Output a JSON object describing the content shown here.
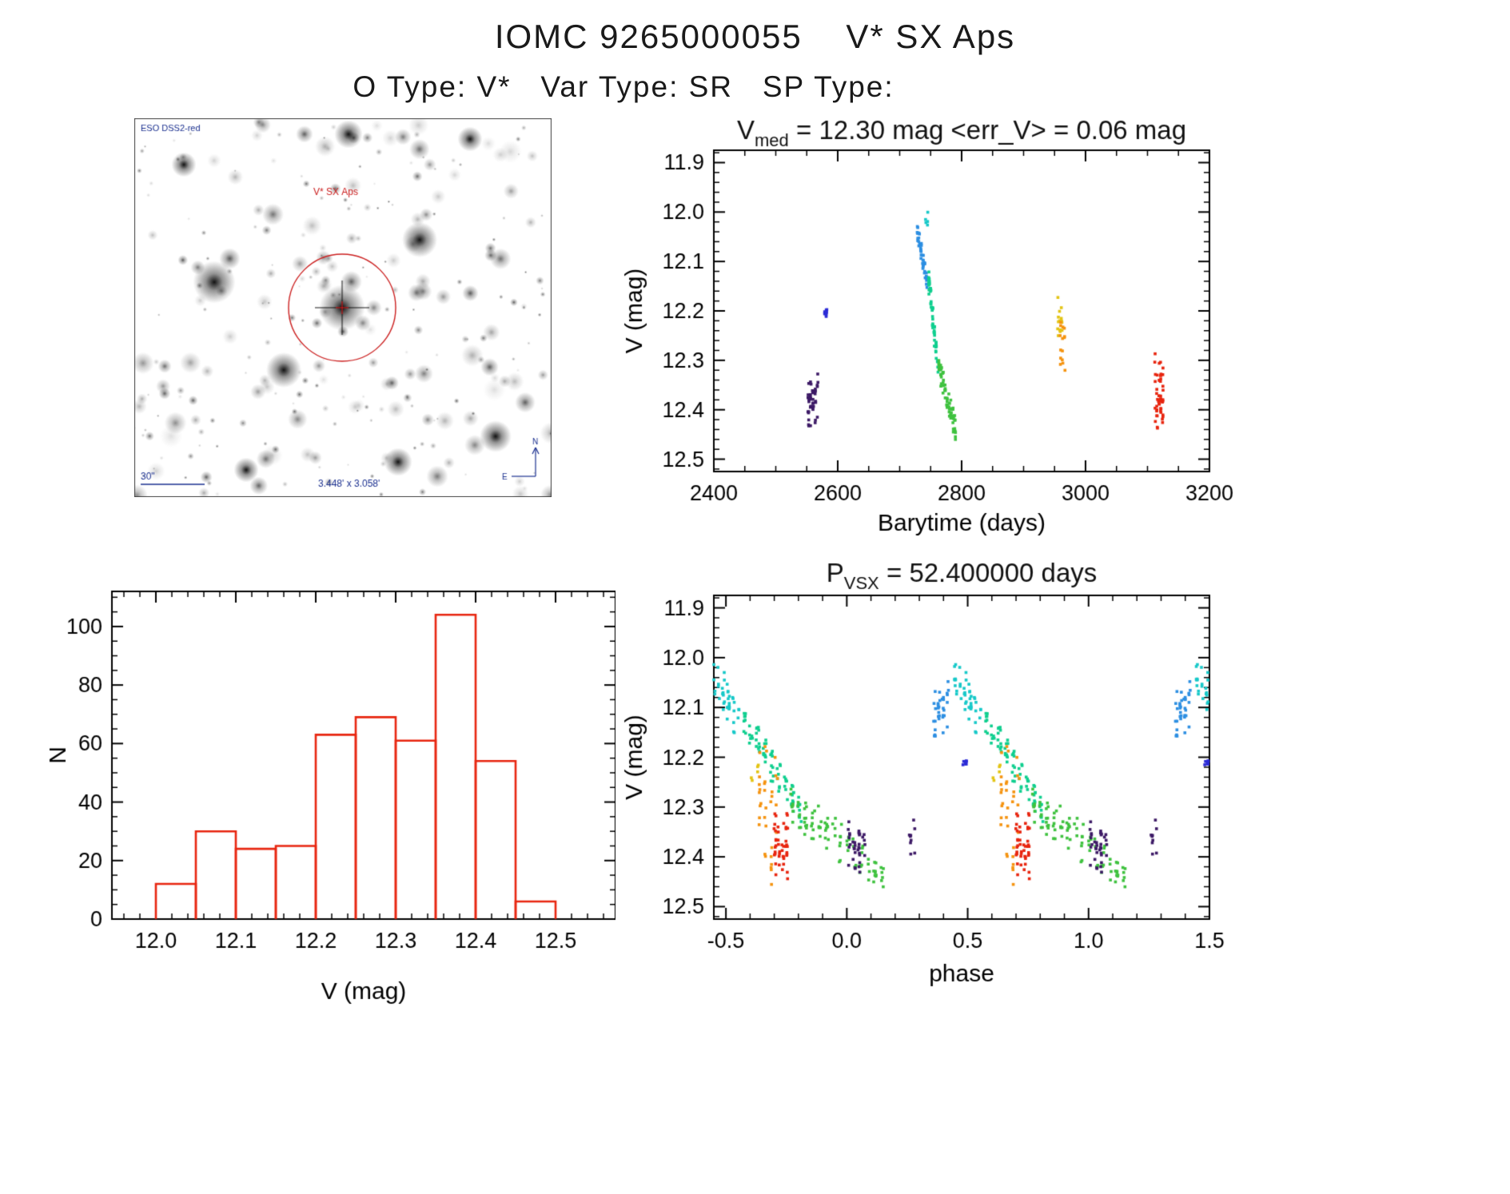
{
  "page": {
    "title": "IOMC 9265000055    V* SX Aps",
    "subtitle": "O Type: V*   Var Type: SR   SP Type:"
  },
  "sky": {
    "survey_label": "ESO DSS2-red",
    "star_label": "V* SX Aps",
    "scale_label": "30\"",
    "fov_label": "3.448' x 3.058'",
    "north_label": "N",
    "east_label": "E",
    "annotation_color": "#1a2f8f",
    "marker_color": "#cc2020"
  },
  "chart_data": [
    {
      "id": "lightcurve",
      "type": "scatter",
      "title_parts": [
        {
          "t": "V",
          "sub": false
        },
        {
          "t": "med",
          "sub": true
        },
        {
          "t": " = 12.30 mag <err_V> = 0.06 mag",
          "sub": false
        }
      ],
      "xlabel": "Barytime (days)",
      "ylabel": "V (mag)",
      "xlim": [
        2400,
        3200
      ],
      "ylim": [
        11.875,
        12.525
      ],
      "xticks": [
        2400,
        2600,
        2800,
        3000,
        3200
      ],
      "xtick_labels": [
        "2400",
        "2600",
        "2800",
        "3000",
        "3200"
      ],
      "yticks": [
        11.9,
        12.0,
        12.1,
        12.2,
        12.3,
        12.4,
        12.5
      ],
      "ytick_labels": [
        "11.9",
        "12.0",
        "12.1",
        "12.2",
        "12.3",
        "12.4",
        "12.5"
      ],
      "xminor": 3,
      "yminor": 4,
      "fold": false,
      "clusters": [
        {
          "color": "#3d1a66",
          "x0": 2551,
          "x1": 2569,
          "y0": 12.32,
          "y1": 12.435,
          "n": 45,
          "cols": 5,
          "trend": false,
          "jitter": 0.01
        },
        {
          "color": "#2b2bd6",
          "x0": 2578,
          "x1": 2583,
          "y0": 12.185,
          "y1": 12.215,
          "n": 9,
          "cols": 2,
          "trend": false,
          "jitter": 0.005
        },
        {
          "color": "#17c9c9",
          "x0": 2737,
          "x1": 2747,
          "y0": 11.99,
          "y1": 12.05,
          "n": 5,
          "cols": 3,
          "trend": false,
          "jitter": 0.01
        },
        {
          "color": "#2d8fe2",
          "x0": 2727,
          "x1": 2745,
          "y0": 12.03,
          "y1": 12.15,
          "n": 50,
          "cols": 6,
          "trend": true,
          "jitter": 0.022
        },
        {
          "color": "#0fcf8f",
          "x0": 2746,
          "x1": 2763,
          "y0": 12.13,
          "y1": 12.33,
          "n": 60,
          "cols": 6,
          "trend": true,
          "jitter": 0.026
        },
        {
          "color": "#3fc23f",
          "x0": 2762,
          "x1": 2791,
          "y0": 12.31,
          "y1": 12.44,
          "n": 70,
          "cols": 9,
          "trend": true,
          "jitter": 0.03
        },
        {
          "color": "#e3c414",
          "x0": 2954,
          "x1": 2963,
          "y0": 12.17,
          "y1": 12.27,
          "n": 15,
          "cols": 3,
          "trend": false,
          "jitter": 0.01
        },
        {
          "color": "#f5930f",
          "x0": 2958,
          "x1": 2968,
          "y0": 12.2,
          "y1": 12.35,
          "n": 15,
          "cols": 3,
          "trend": false,
          "jitter": 0.01
        },
        {
          "color": "#e8250f",
          "x0": 3111,
          "x1": 3126,
          "y0": 12.28,
          "y1": 12.45,
          "n": 50,
          "cols": 5,
          "trend": false,
          "jitter": 0.01
        }
      ]
    },
    {
      "id": "histogram",
      "type": "bar",
      "xlabel": "V (mag)",
      "ylabel": "N",
      "bin_start": 12.0,
      "bin_width": 0.05,
      "values": [
        12,
        30,
        24,
        25,
        63,
        69,
        61,
        104,
        54,
        6
      ],
      "xlim": [
        11.945,
        12.575
      ],
      "ylim": [
        112,
        0
      ],
      "xticks": [
        12.0,
        12.1,
        12.2,
        12.3,
        12.4,
        12.5
      ],
      "xtick_labels": [
        "12.0",
        "12.1",
        "12.2",
        "12.3",
        "12.4",
        "12.5"
      ],
      "yticks": [
        0,
        20,
        40,
        60,
        80,
        100
      ],
      "ytick_labels": [
        "0",
        "20",
        "40",
        "60",
        "80",
        "100"
      ],
      "xminor": 4,
      "yminor": 3,
      "bar_color": "#e8250f"
    },
    {
      "id": "phase",
      "type": "scatter",
      "title_parts": [
        {
          "t": "P",
          "sub": false
        },
        {
          "t": "VSX",
          "sub": true
        },
        {
          "t": " = 52.400000 days",
          "sub": false
        }
      ],
      "xlabel": "phase",
      "ylabel": "V (mag)",
      "xlim": [
        -0.55,
        1.5
      ],
      "ylim": [
        11.875,
        12.525
      ],
      "xticks": [
        -0.5,
        0.0,
        0.5,
        1.0,
        1.5
      ],
      "xtick_labels": [
        "-0.5",
        "0.0",
        "0.5",
        "1.0",
        "1.5"
      ],
      "yticks": [
        11.9,
        12.0,
        12.1,
        12.2,
        12.3,
        12.4,
        12.5
      ],
      "ytick_labels": [
        "11.9",
        "12.0",
        "12.1",
        "12.2",
        "12.3",
        "12.4",
        "12.5"
      ],
      "xminor": 4,
      "yminor": 4,
      "fold": true,
      "period_days": 52.4,
      "clusters": [
        {
          "color": "#2d8fe2",
          "x0": 0.355,
          "x1": 0.425,
          "y0": 12.04,
          "y1": 12.16,
          "n": 35,
          "cols": 4,
          "trend": false,
          "jitter": 0.01
        },
        {
          "color": "#17c9c9",
          "x0": 0.44,
          "x1": 0.56,
          "y0": 12.03,
          "y1": 12.13,
          "n": 45,
          "cols": 6,
          "trend": true,
          "jitter": 0.05
        },
        {
          "color": "#0fcf8f",
          "x0": 0.56,
          "x1": 0.82,
          "y0": 12.12,
          "y1": 12.32,
          "n": 80,
          "cols": 9,
          "trend": true,
          "jitter": 0.04
        },
        {
          "color": "#e3c414",
          "x0": 0.6,
          "x1": 0.64,
          "y0": 12.21,
          "y1": 12.25,
          "n": 5,
          "cols": 2,
          "trend": false,
          "jitter": 0.005
        },
        {
          "color": "#f5930f",
          "x0": 0.63,
          "x1": 0.72,
          "y0": 12.2,
          "y1": 12.36,
          "n": 25,
          "cols": 4,
          "trend": false,
          "jitter": 0.01
        },
        {
          "color": "#f5930f",
          "x0": 0.655,
          "x1": 0.695,
          "y0": 12.36,
          "y1": 12.45,
          "n": 8,
          "cols": 2,
          "trend": false,
          "jitter": 0.01
        },
        {
          "color": "#e8250f",
          "x0": 0.695,
          "x1": 0.76,
          "y0": 12.31,
          "y1": 12.44,
          "n": 45,
          "cols": 4,
          "trend": false,
          "jitter": 0.01
        },
        {
          "color": "#3fc23f",
          "x0": 0.76,
          "x1": 1.16,
          "y0": 12.29,
          "y1": 12.44,
          "n": 95,
          "cols": 14,
          "trend": true,
          "jitter": 0.045
        },
        {
          "color": "#3d1a66",
          "x0": 1.0,
          "x1": 1.08,
          "y0": 12.33,
          "y1": 12.43,
          "n": 35,
          "cols": 4,
          "trend": false,
          "jitter": 0.01
        },
        {
          "color": "#3d1a66",
          "x0": 1.255,
          "x1": 1.285,
          "y0": 12.33,
          "y1": 12.4,
          "n": 9,
          "cols": 2,
          "trend": false,
          "jitter": 0.005
        },
        {
          "color": "#2b2bd6",
          "x0": 1.475,
          "x1": 1.5,
          "y0": 12.19,
          "y1": 12.225,
          "n": 7,
          "cols": 2,
          "trend": false,
          "jitter": 0.005
        }
      ]
    }
  ]
}
